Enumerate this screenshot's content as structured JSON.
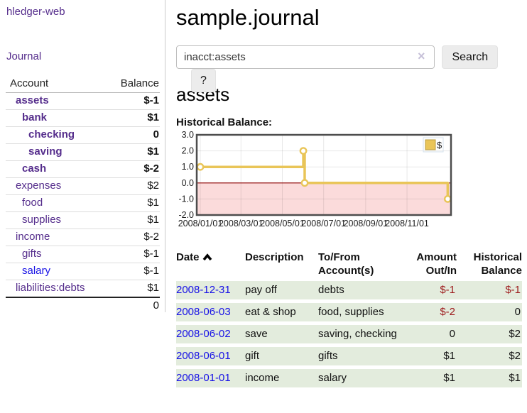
{
  "app": {
    "brand": "hledger-web",
    "nav_journal": "Journal"
  },
  "sidebar": {
    "header": {
      "account": "Account",
      "balance": "Balance"
    },
    "accounts": [
      {
        "name": "assets",
        "depth": 1,
        "bold": true,
        "balance": "$-1",
        "balance_style": "neg"
      },
      {
        "name": "bank",
        "depth": 2,
        "bold": true,
        "balance": "$1",
        "balance_style": "pos"
      },
      {
        "name": "checking",
        "depth": 3,
        "bold": true,
        "balance": "0",
        "balance_style": "pos"
      },
      {
        "name": "saving",
        "depth": 3,
        "bold": true,
        "balance": "$1",
        "balance_style": "pos"
      },
      {
        "name": "cash",
        "depth": 2,
        "bold": true,
        "balance": "$-2",
        "balance_style": "neg"
      },
      {
        "name": "expenses",
        "depth": 1,
        "bold": false,
        "balance": "$2",
        "balance_style": "pos"
      },
      {
        "name": "food",
        "depth": 2,
        "bold": false,
        "balance": "$1",
        "balance_style": "pos"
      },
      {
        "name": "supplies",
        "depth": 2,
        "bold": false,
        "balance": "$1",
        "balance_style": "pos"
      },
      {
        "name": "income",
        "depth": 1,
        "bold": false,
        "balance": "$-2",
        "balance_style": "neg-light"
      },
      {
        "name": "gifts",
        "depth": 2,
        "bold": false,
        "balance": "$-1",
        "balance_style": "neg-light"
      },
      {
        "name": "salary",
        "depth": 2,
        "bold": false,
        "link_style": "unvisited",
        "balance": "$-1",
        "balance_style": "neg-light"
      },
      {
        "name": "liabilities:debts",
        "depth": 1,
        "bold": false,
        "balance": "$1",
        "balance_style": "pos"
      }
    ],
    "total": "0"
  },
  "main": {
    "title": "sample.journal",
    "search": {
      "value": "inacct:assets",
      "clear_icon": "×",
      "search_button": "Search",
      "help_button": "?"
    },
    "account_heading": "assets",
    "chart_title": "Historical Balance:"
  },
  "chart_data": {
    "type": "line",
    "step": true,
    "title": "Historical Balance",
    "series": [
      {
        "name": "$",
        "points": [
          [
            "2008-01-01",
            1.0
          ],
          [
            "2008-06-01",
            2.0
          ],
          [
            "2008-06-03",
            0.0
          ],
          [
            "2008-12-31",
            -1.0
          ]
        ]
      }
    ],
    "ylim": [
      -2.0,
      3.0
    ],
    "y_ticks": [
      "3.0",
      "2.0",
      "1.0",
      "0.0",
      "-1.0",
      "-2.0"
    ],
    "x_ticks": [
      "2008/01/01",
      "2008/03/01",
      "2008/05/01",
      "2008/07/01",
      "2008/09/01",
      "2008/11/01"
    ],
    "x_domain": [
      "2008-01-01",
      "2008-12-31"
    ],
    "grid": true,
    "legend": {
      "label": "$",
      "position": "top-right"
    },
    "colors": {
      "line": "#e9c558",
      "marker_fill": "#ffffff",
      "negative_region": "#fbdbdb",
      "zero_line": "#8b0000",
      "plot_border": "#4d4d4d",
      "legend_square": "#eac558",
      "legend_square_border": "#b99b3e"
    }
  },
  "register": {
    "headers": {
      "date": "Date",
      "description": "Description",
      "tofrom": "To/From Account(s)",
      "amount": "Amount Out/In",
      "balance": "Historical Balance"
    },
    "sort_icon": "chevron-up",
    "rows": [
      {
        "date": "2008-12-31",
        "description": "pay off",
        "accounts": "debts",
        "amount": "$-1",
        "amount_neg": true,
        "balance": "$-1",
        "balance_neg": true
      },
      {
        "date": "2008-06-03",
        "description": "eat & shop",
        "accounts": "food, supplies",
        "amount": "$-2",
        "amount_neg": true,
        "balance": "0",
        "balance_neg": false
      },
      {
        "date": "2008-06-02",
        "description": "save",
        "accounts": "saving, checking",
        "amount": "0",
        "amount_neg": false,
        "balance": "$2",
        "balance_neg": false
      },
      {
        "date": "2008-06-01",
        "description": "gift",
        "accounts": "gifts",
        "amount": "$1",
        "amount_neg": false,
        "balance": "$2",
        "balance_neg": false
      },
      {
        "date": "2008-01-01",
        "description": "income",
        "accounts": "salary",
        "amount": "$1",
        "amount_neg": false,
        "balance": "$1",
        "balance_neg": false
      }
    ]
  },
  "colors": {
    "link_purple": "#552d8c",
    "link_blue": "#1812e6",
    "negative_bold": "#9d1a1c",
    "negative_light": "#c1737f",
    "row_green": "#e3ecdd"
  }
}
